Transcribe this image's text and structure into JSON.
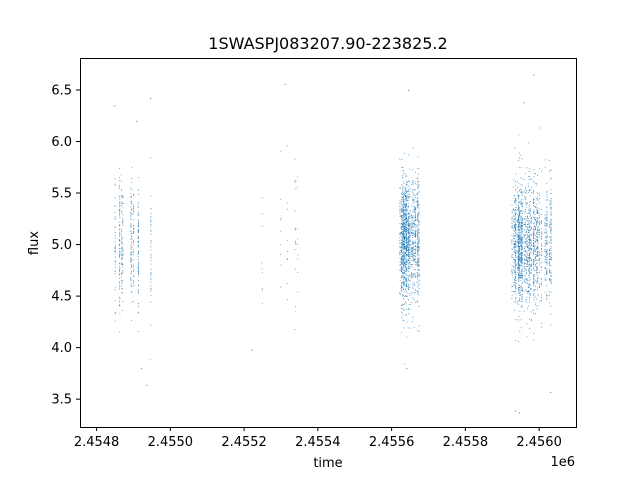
{
  "chart_data": {
    "type": "scatter",
    "title": "1SWASPJ083207.90-223825.2",
    "xlabel": "time",
    "ylabel": "flux",
    "x_offset_label": "1e6",
    "xlim": [
      2454755,
      2456100
    ],
    "ylim": [
      3.23,
      6.81
    ],
    "x_ticks": [
      2454800,
      2455000,
      2455200,
      2455400,
      2455600,
      2455800,
      2456000
    ],
    "x_tick_labels": [
      "2.4548",
      "2.4550",
      "2.4552",
      "2.4554",
      "2.4556",
      "2.4558",
      "2.4560"
    ],
    "y_ticks": [
      3.5,
      4.0,
      4.5,
      5.0,
      5.5,
      6.0,
      6.5
    ],
    "y_tick_labels": [
      "3.5",
      "4.0",
      "4.5",
      "5.0",
      "5.5",
      "6.0",
      "6.5"
    ],
    "grid": false,
    "marker_color": "#1f77b4",
    "observing_seasons": [
      {
        "start": 2454843,
        "end": 2454948,
        "median_flux": 5.0,
        "scatter": 0.32,
        "points": 450
      },
      {
        "start": 2455200,
        "end": 2455345,
        "median_flux": 5.1,
        "scatter": 0.45,
        "points": 55
      },
      {
        "start": 2455620,
        "end": 2455675,
        "median_flux": 5.05,
        "scatter": 0.3,
        "points": 1400
      },
      {
        "start": 2455925,
        "end": 2456035,
        "median_flux": 5.0,
        "scatter": 0.3,
        "points": 1700
      }
    ],
    "notable_points": [
      {
        "x": 2454848,
        "y": 6.35
      },
      {
        "x": 2454908,
        "y": 6.2
      },
      {
        "x": 2454945,
        "y": 6.42
      },
      {
        "x": 2455310,
        "y": 6.56
      },
      {
        "x": 2455220,
        "y": 3.98
      },
      {
        "x": 2454920,
        "y": 3.8
      },
      {
        "x": 2454935,
        "y": 3.64
      },
      {
        "x": 2455645,
        "y": 6.5
      },
      {
        "x": 2455640,
        "y": 3.8
      },
      {
        "x": 2455935,
        "y": 3.39
      },
      {
        "x": 2455945,
        "y": 3.37
      },
      {
        "x": 2455985,
        "y": 6.65
      },
      {
        "x": 2456030,
        "y": 3.57
      },
      {
        "x": 2455958,
        "y": 6.38
      }
    ]
  }
}
